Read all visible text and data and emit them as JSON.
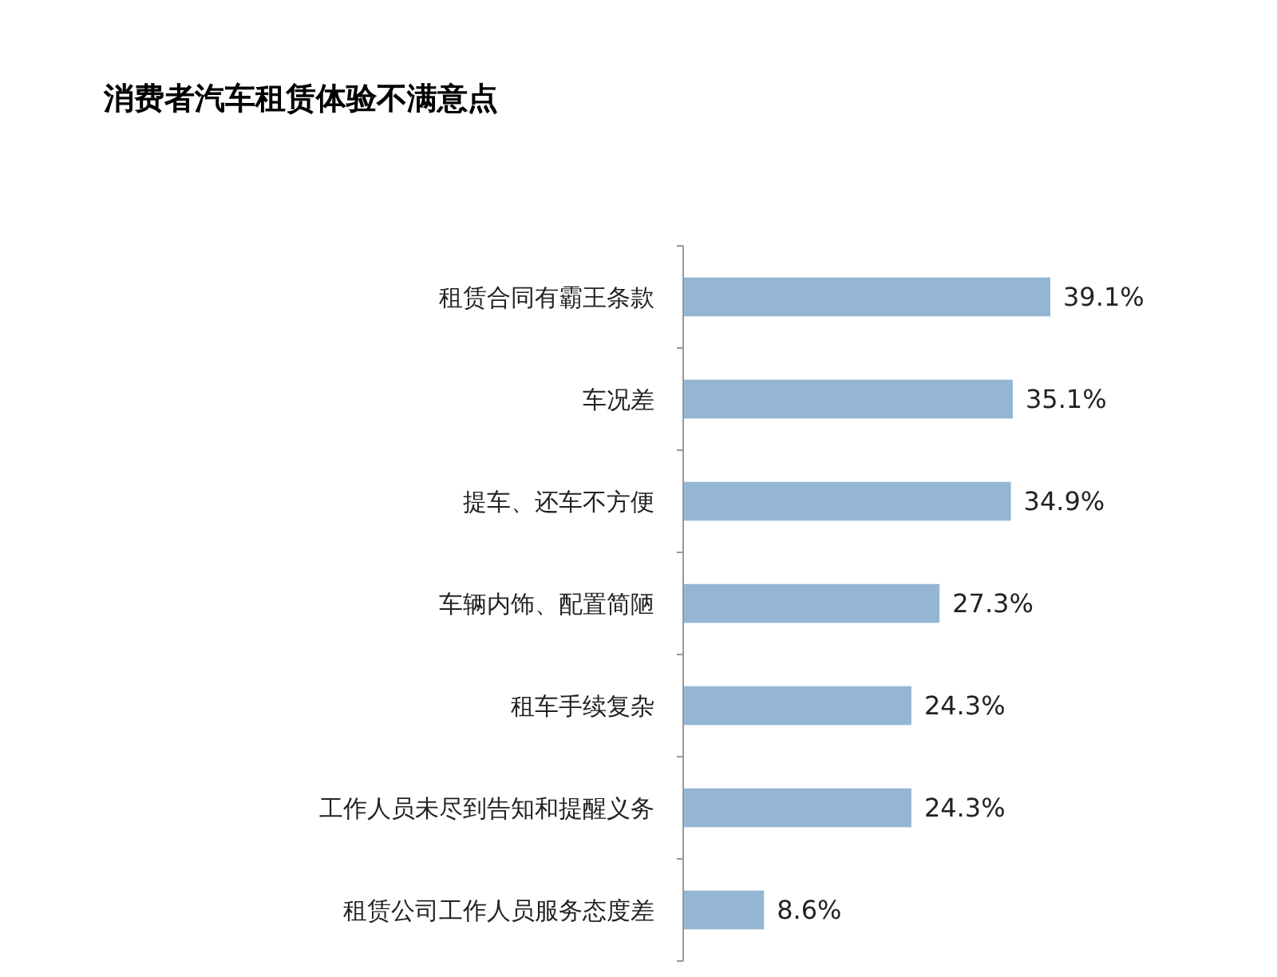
{
  "chart_data": {
    "type": "bar",
    "orientation": "horizontal",
    "title": "消费者汽车租赁体验不满意点",
    "categories": [
      "租赁合同有霸王条款",
      "车况差",
      "提车、还车不方便",
      "车辆内饰、配置简陋",
      "租车手续复杂",
      "工作人员未尽到告知和提醒义务",
      "租赁公司工作人员服务态度差"
    ],
    "values": [
      39.1,
      35.1,
      34.9,
      27.3,
      24.3,
      24.3,
      8.6
    ],
    "value_labels": [
      "39.1%",
      "35.1%",
      "34.9%",
      "27.3%",
      "24.3%",
      "24.3%",
      "8.6%"
    ],
    "color": "#94b6d4"
  }
}
